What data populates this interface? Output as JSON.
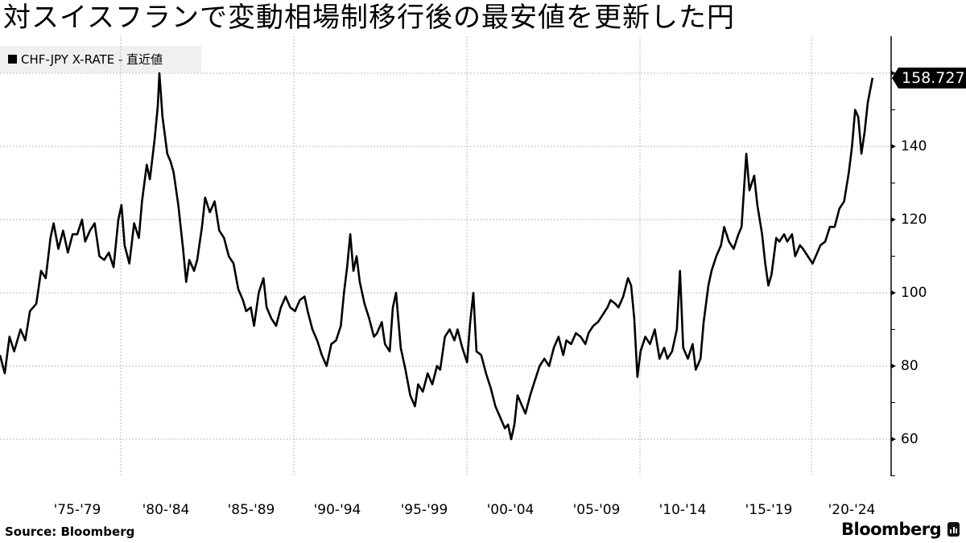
{
  "title": "対スイスフランで変動相場制移行後の最安値を更新した円",
  "legend": {
    "label": "CHF-JPY X-RATE - 直近値",
    "color": "#000000"
  },
  "last_value_tag": "158.727",
  "footer": {
    "source": "Source:  Bloomberg",
    "brand": "Bloomberg"
  },
  "chart_data": {
    "type": "line",
    "title": "対スイスフランで変動相場制移行後の最安値を更新した円",
    "series_name": "CHF-JPY X-RATE - 直近値",
    "xlabel": "",
    "ylabel": "",
    "ylim": [
      50,
      170
    ],
    "yticks": [
      60,
      80,
      100,
      120,
      140,
      160
    ],
    "ytick_labels": [
      "60",
      "80",
      "100",
      "120",
      "140",
      ""
    ],
    "xtick_labels": [
      "'75-'79",
      "'80-'84",
      "'85-'89",
      "'90-'94",
      "'95-'99",
      "'00-'04",
      "'05-'09",
      "'10-'14",
      "'15-'19",
      "'20-'24"
    ],
    "grid": true,
    "last_value": 158.727,
    "points": [
      [
        1973.0,
        83
      ],
      [
        1973.3,
        78
      ],
      [
        1973.6,
        88
      ],
      [
        1973.9,
        84
      ],
      [
        1974.3,
        90
      ],
      [
        1974.6,
        87
      ],
      [
        1974.9,
        95
      ],
      [
        1975.3,
        97
      ],
      [
        1975.6,
        106
      ],
      [
        1975.9,
        104
      ],
      [
        1976.2,
        115
      ],
      [
        1976.4,
        119
      ],
      [
        1976.7,
        112
      ],
      [
        1977.0,
        117
      ],
      [
        1977.3,
        111
      ],
      [
        1977.6,
        116
      ],
      [
        1977.9,
        116
      ],
      [
        1978.2,
        120
      ],
      [
        1978.4,
        114
      ],
      [
        1978.7,
        117
      ],
      [
        1979.0,
        119
      ],
      [
        1979.3,
        110
      ],
      [
        1979.6,
        109
      ],
      [
        1979.9,
        111
      ],
      [
        1980.2,
        107
      ],
      [
        1980.5,
        120
      ],
      [
        1980.7,
        124
      ],
      [
        1980.9,
        113
      ],
      [
        1981.2,
        108
      ],
      [
        1981.5,
        119
      ],
      [
        1981.8,
        115
      ],
      [
        1982.0,
        125
      ],
      [
        1982.3,
        135
      ],
      [
        1982.5,
        131
      ],
      [
        1982.8,
        142
      ],
      [
        1983.0,
        151
      ],
      [
        1983.1,
        160
      ],
      [
        1983.3,
        148
      ],
      [
        1983.6,
        138
      ],
      [
        1983.8,
        136
      ],
      [
        1984.0,
        133
      ],
      [
        1984.3,
        124
      ],
      [
        1984.6,
        112
      ],
      [
        1984.8,
        103
      ],
      [
        1985.0,
        109
      ],
      [
        1985.3,
        106
      ],
      [
        1985.5,
        109
      ],
      [
        1985.8,
        118
      ],
      [
        1986.0,
        126
      ],
      [
        1986.3,
        122
      ],
      [
        1986.6,
        125
      ],
      [
        1986.9,
        117
      ],
      [
        1987.2,
        115
      ],
      [
        1987.5,
        110
      ],
      [
        1987.8,
        108
      ],
      [
        1988.1,
        101
      ],
      [
        1988.4,
        98
      ],
      [
        1988.6,
        95
      ],
      [
        1988.9,
        96
      ],
      [
        1989.1,
        91
      ],
      [
        1989.4,
        100
      ],
      [
        1989.7,
        104
      ],
      [
        1989.9,
        96
      ],
      [
        1990.2,
        93
      ],
      [
        1990.5,
        91
      ],
      [
        1990.8,
        96
      ],
      [
        1991.1,
        99
      ],
      [
        1991.4,
        96
      ],
      [
        1991.7,
        95
      ],
      [
        1992.0,
        98
      ],
      [
        1992.3,
        99
      ],
      [
        1992.5,
        95
      ],
      [
        1992.8,
        90
      ],
      [
        1993.1,
        87
      ],
      [
        1993.4,
        83
      ],
      [
        1993.7,
        80
      ],
      [
        1994.0,
        86
      ],
      [
        1994.3,
        87
      ],
      [
        1994.6,
        91
      ],
      [
        1994.8,
        100
      ],
      [
        1995.0,
        107
      ],
      [
        1995.2,
        116
      ],
      [
        1995.4,
        106
      ],
      [
        1995.6,
        110
      ],
      [
        1995.8,
        103
      ],
      [
        1996.1,
        97
      ],
      [
        1996.4,
        93
      ],
      [
        1996.7,
        88
      ],
      [
        1996.9,
        89
      ],
      [
        1997.2,
        92
      ],
      [
        1997.4,
        86
      ],
      [
        1997.7,
        84
      ],
      [
        1997.9,
        96
      ],
      [
        1998.1,
        100
      ],
      [
        1998.4,
        85
      ],
      [
        1998.7,
        79
      ],
      [
        1999.0,
        72
      ],
      [
        1999.3,
        69
      ],
      [
        1999.5,
        75
      ],
      [
        1999.8,
        73
      ],
      [
        2000.1,
        78
      ],
      [
        2000.4,
        75
      ],
      [
        2000.7,
        80
      ],
      [
        2000.9,
        79
      ],
      [
        2001.2,
        88
      ],
      [
        2001.5,
        90
      ],
      [
        2001.8,
        87
      ],
      [
        2002.0,
        90
      ],
      [
        2002.3,
        85
      ],
      [
        2002.6,
        81
      ],
      [
        2002.8,
        92
      ],
      [
        2003.0,
        100
      ],
      [
        2003.2,
        84
      ],
      [
        2003.5,
        83
      ],
      [
        2003.8,
        78
      ],
      [
        2004.1,
        74
      ],
      [
        2004.4,
        69
      ],
      [
        2004.7,
        66
      ],
      [
        2005.0,
        63
      ],
      [
        2005.2,
        64
      ],
      [
        2005.4,
        60
      ],
      [
        2005.6,
        64
      ],
      [
        2005.8,
        72
      ],
      [
        2006.0,
        70
      ],
      [
        2006.3,
        67
      ],
      [
        2006.6,
        72
      ],
      [
        2006.9,
        76
      ],
      [
        2007.2,
        80
      ],
      [
        2007.5,
        82
      ],
      [
        2007.8,
        80
      ],
      [
        2008.1,
        85
      ],
      [
        2008.4,
        88
      ],
      [
        2008.7,
        83
      ],
      [
        2008.9,
        87
      ],
      [
        2009.2,
        86
      ],
      [
        2009.5,
        89
      ],
      [
        2009.8,
        88
      ],
      [
        2010.1,
        86
      ],
      [
        2010.3,
        89
      ],
      [
        2010.6,
        91
      ],
      [
        2010.9,
        92
      ],
      [
        2011.2,
        94
      ],
      [
        2011.5,
        96
      ],
      [
        2011.7,
        98
      ],
      [
        2012.0,
        97
      ],
      [
        2012.2,
        96
      ],
      [
        2012.5,
        99
      ],
      [
        2012.8,
        104
      ],
      [
        2013.0,
        102
      ],
      [
        2013.2,
        93
      ],
      [
        2013.4,
        77
      ],
      [
        2013.6,
        84
      ],
      [
        2013.9,
        88
      ],
      [
        2014.2,
        86
      ],
      [
        2014.5,
        90
      ],
      [
        2014.8,
        82
      ],
      [
        2015.1,
        85
      ],
      [
        2015.3,
        82
      ],
      [
        2015.6,
        84
      ],
      [
        2015.9,
        90
      ],
      [
        2016.1,
        106
      ],
      [
        2016.3,
        85
      ],
      [
        2016.6,
        82
      ],
      [
        2016.9,
        86
      ],
      [
        2017.1,
        79
      ],
      [
        2017.4,
        82
      ],
      [
        2017.6,
        92
      ],
      [
        2017.9,
        102
      ],
      [
        2018.1,
        106
      ],
      [
        2018.4,
        110
      ],
      [
        2018.7,
        113
      ],
      [
        2018.9,
        118
      ],
      [
        2019.2,
        114
      ],
      [
        2019.5,
        112
      ],
      [
        2019.8,
        116
      ],
      [
        2020.0,
        118
      ],
      [
        2020.3,
        138
      ],
      [
        2020.5,
        128
      ],
      [
        2020.8,
        132
      ],
      [
        2021.0,
        124
      ],
      [
        2021.3,
        116
      ],
      [
        2021.5,
        108
      ],
      [
        2021.7,
        102
      ],
      [
        2021.9,
        105
      ],
      [
        2022.2,
        115
      ],
      [
        2022.4,
        114
      ],
      [
        2022.7,
        116
      ],
      [
        2022.9,
        114
      ],
      [
        2023.2,
        116
      ],
      [
        2023.4,
        110
      ],
      [
        2023.7,
        113
      ],
      [
        2023.9,
        112
      ],
      [
        2024.2,
        110
      ],
      [
        2024.5,
        108
      ],
      [
        2024.8,
        111
      ],
      [
        2025.0,
        113
      ],
      [
        2025.3,
        114
      ],
      [
        2025.6,
        118
      ],
      [
        2025.9,
        118
      ],
      [
        2026.2,
        123
      ],
      [
        2026.5,
        125
      ],
      [
        2026.8,
        133
      ],
      [
        2027.0,
        140
      ],
      [
        2027.2,
        150
      ],
      [
        2027.4,
        148
      ],
      [
        2027.6,
        138
      ],
      [
        2027.8,
        144
      ],
      [
        2028.0,
        152
      ],
      [
        2028.3,
        158.727
      ]
    ]
  }
}
